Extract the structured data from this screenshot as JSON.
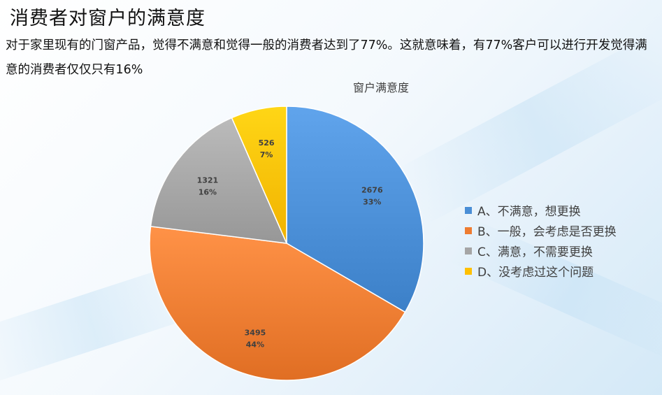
{
  "slide": {
    "title": "消费者对窗户的满意度",
    "description": "对于家里现有的门窗产品，觉得不满意和觉得一般的消费者达到了77%。这就意味着，有77%客户可以进行开发觉得满意的消费者仅仅只有16%"
  },
  "chart_data": {
    "type": "pie",
    "title": "窗户满意度",
    "categories": [
      "A、不满意，想更换",
      "B、一般，会考虑是否更换",
      "C、满意，不需要更换",
      "D、没考虑过这个问题"
    ],
    "values": [
      2676,
      3495,
      1321,
      526
    ],
    "percent_labels": [
      "33%",
      "44%",
      "16%",
      "7%"
    ],
    "colors": [
      "#4a8ed6",
      "#ee7c31",
      "#a5a5a5",
      "#ffc000"
    ],
    "start_angle_deg": 0,
    "direction": "clockwise",
    "legend_position": "right"
  }
}
